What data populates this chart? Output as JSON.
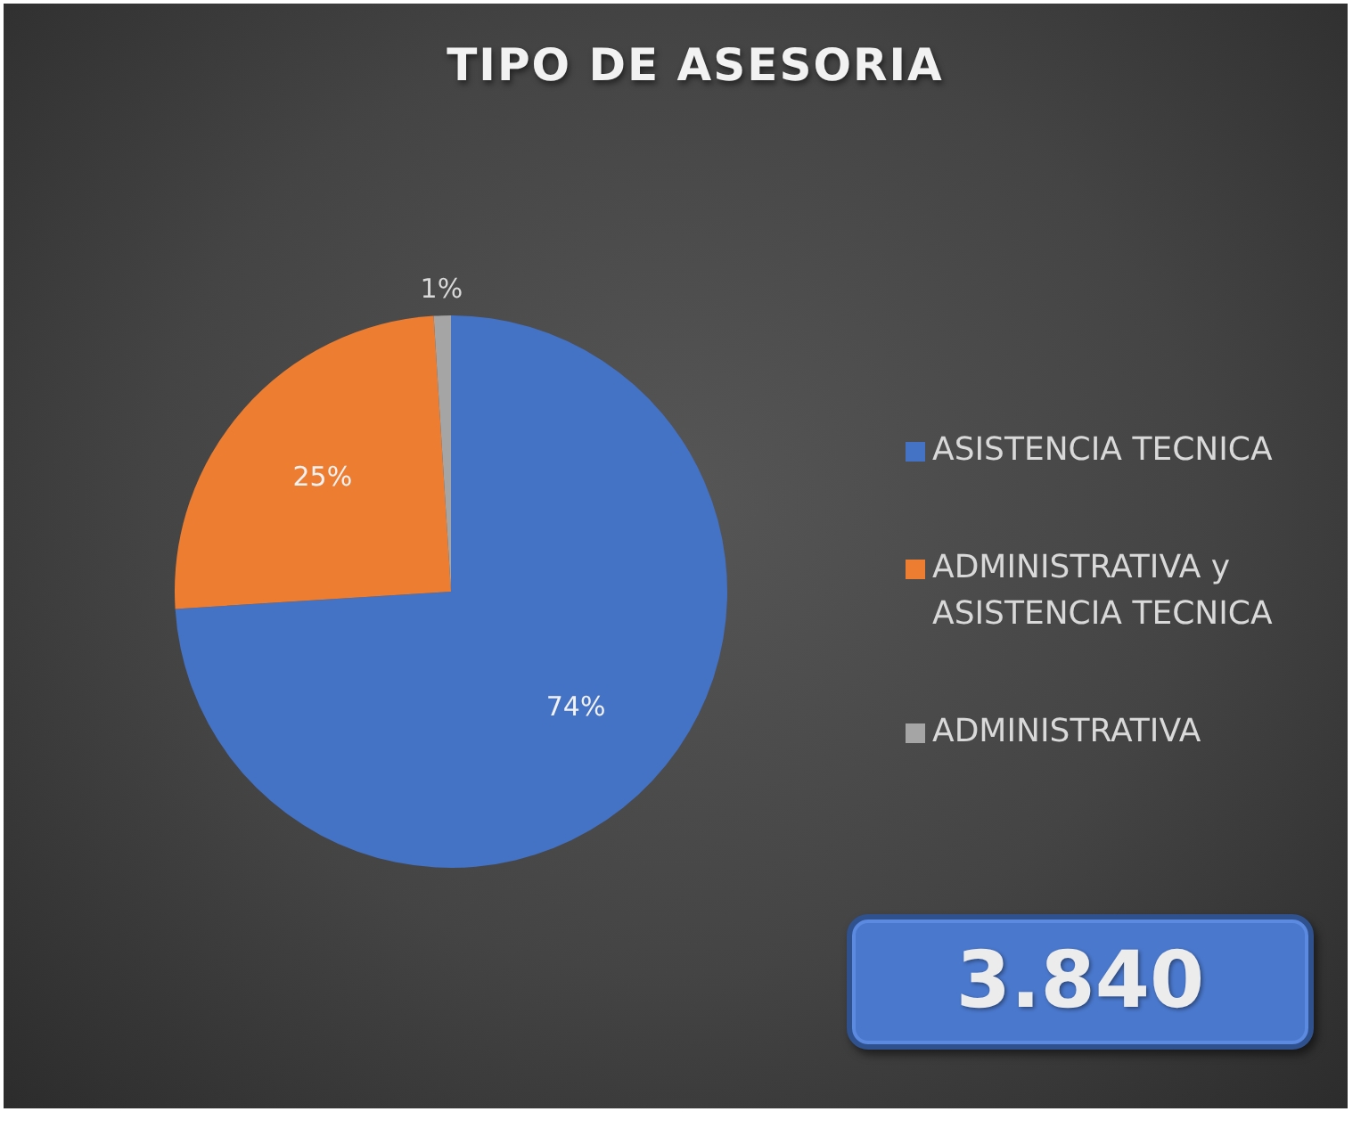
{
  "chart_data": {
    "type": "pie",
    "title": "TIPO DE ASESORIA",
    "categories": [
      "ASISTENCIA TECNICA",
      "ADMINISTRATIVA y ASISTENCIA TECNICA",
      "ADMINISTRATIVA"
    ],
    "values": [
      74,
      25,
      1
    ],
    "colors": [
      "#4472c4",
      "#ed7d31",
      "#a5a5a5"
    ],
    "value_labels": [
      "74%",
      "25%",
      "1%"
    ],
    "legend": "right",
    "annotations": [
      "3.840"
    ]
  }
}
